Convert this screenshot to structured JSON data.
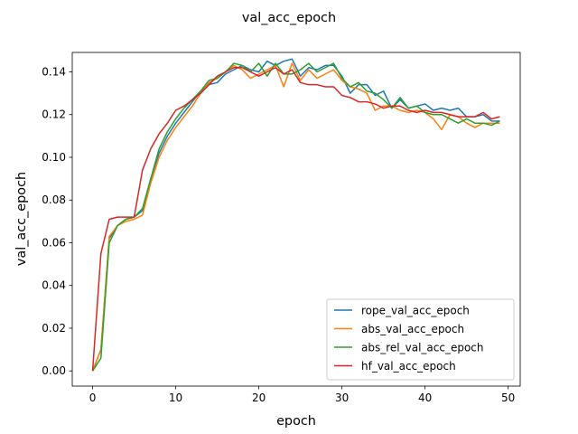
{
  "chart_data": {
    "type": "line",
    "title": "val_acc_epoch",
    "xlabel": "epoch",
    "ylabel": "val_acc_epoch",
    "xlim": [
      -2.45,
      51.45
    ],
    "ylim": [
      -0.0071,
      0.1491
    ],
    "xticks": [
      0,
      10,
      20,
      30,
      40,
      50
    ],
    "yticks": [
      0.0,
      0.02,
      0.04,
      0.06,
      0.08,
      0.1,
      0.12,
      0.14
    ],
    "xtick_labels": [
      "0",
      "10",
      "20",
      "30",
      "40",
      "50"
    ],
    "ytick_labels": [
      "0.00",
      "0.02",
      "0.04",
      "0.06",
      "0.08",
      "0.10",
      "0.12",
      "0.14"
    ],
    "grid": false,
    "legend_position": "lower-right",
    "x": [
      0,
      1,
      2,
      3,
      4,
      5,
      6,
      7,
      8,
      9,
      10,
      11,
      12,
      13,
      14,
      15,
      16,
      17,
      18,
      19,
      20,
      21,
      22,
      23,
      24,
      25,
      26,
      27,
      28,
      29,
      30,
      31,
      32,
      33,
      34,
      35,
      36,
      37,
      38,
      39,
      40,
      41,
      42,
      43,
      44,
      45,
      46,
      47,
      48,
      49
    ],
    "series": [
      {
        "name": "rope_val_acc_epoch",
        "color": "#1f77b4",
        "values": [
          0.0,
          0.01,
          0.062,
          0.068,
          0.071,
          0.072,
          0.075,
          0.09,
          0.102,
          0.11,
          0.116,
          0.121,
          0.126,
          0.131,
          0.134,
          0.135,
          0.139,
          0.141,
          0.143,
          0.141,
          0.14,
          0.145,
          0.143,
          0.145,
          0.146,
          0.138,
          0.142,
          0.141,
          0.143,
          0.143,
          0.138,
          0.13,
          0.134,
          0.134,
          0.129,
          0.131,
          0.123,
          0.127,
          0.123,
          0.124,
          0.125,
          0.122,
          0.123,
          0.122,
          0.123,
          0.119,
          0.119,
          0.12,
          0.117,
          0.117
        ]
      },
      {
        "name": "abs_val_acc_epoch",
        "color": "#ff7f0e",
        "values": [
          0.0,
          0.01,
          0.063,
          0.068,
          0.07,
          0.071,
          0.073,
          0.088,
          0.1,
          0.108,
          0.114,
          0.119,
          0.124,
          0.13,
          0.135,
          0.137,
          0.14,
          0.143,
          0.141,
          0.137,
          0.139,
          0.141,
          0.143,
          0.133,
          0.144,
          0.136,
          0.141,
          0.137,
          0.139,
          0.141,
          0.136,
          0.133,
          0.132,
          0.13,
          0.122,
          0.124,
          0.124,
          0.122,
          0.121,
          0.122,
          0.121,
          0.118,
          0.113,
          0.12,
          0.119,
          0.116,
          0.114,
          0.116,
          0.116,
          0.116
        ]
      },
      {
        "name": "abs_rel_val_acc_epoch",
        "color": "#2ca02c",
        "values": [
          0.0,
          0.006,
          0.06,
          0.068,
          0.071,
          0.072,
          0.076,
          0.09,
          0.104,
          0.112,
          0.118,
          0.123,
          0.127,
          0.131,
          0.136,
          0.137,
          0.14,
          0.144,
          0.143,
          0.14,
          0.144,
          0.138,
          0.144,
          0.139,
          0.139,
          0.141,
          0.144,
          0.14,
          0.142,
          0.144,
          0.137,
          0.133,
          0.135,
          0.131,
          0.13,
          0.127,
          0.123,
          0.128,
          0.123,
          0.124,
          0.121,
          0.12,
          0.12,
          0.118,
          0.116,
          0.118,
          0.116,
          0.116,
          0.115,
          0.117
        ]
      },
      {
        "name": "hf_val_acc_epoch",
        "color": "#d62728",
        "values": [
          0.0,
          0.055,
          0.071,
          0.072,
          0.072,
          0.072,
          0.094,
          0.104,
          0.111,
          0.116,
          0.122,
          0.124,
          0.127,
          0.13,
          0.134,
          0.138,
          0.14,
          0.142,
          0.142,
          0.14,
          0.138,
          0.14,
          0.142,
          0.139,
          0.141,
          0.135,
          0.134,
          0.134,
          0.133,
          0.133,
          0.129,
          0.128,
          0.126,
          0.126,
          0.125,
          0.123,
          0.124,
          0.124,
          0.122,
          0.121,
          0.122,
          0.121,
          0.121,
          0.12,
          0.119,
          0.119,
          0.119,
          0.121,
          0.118,
          0.119
        ]
      }
    ]
  }
}
